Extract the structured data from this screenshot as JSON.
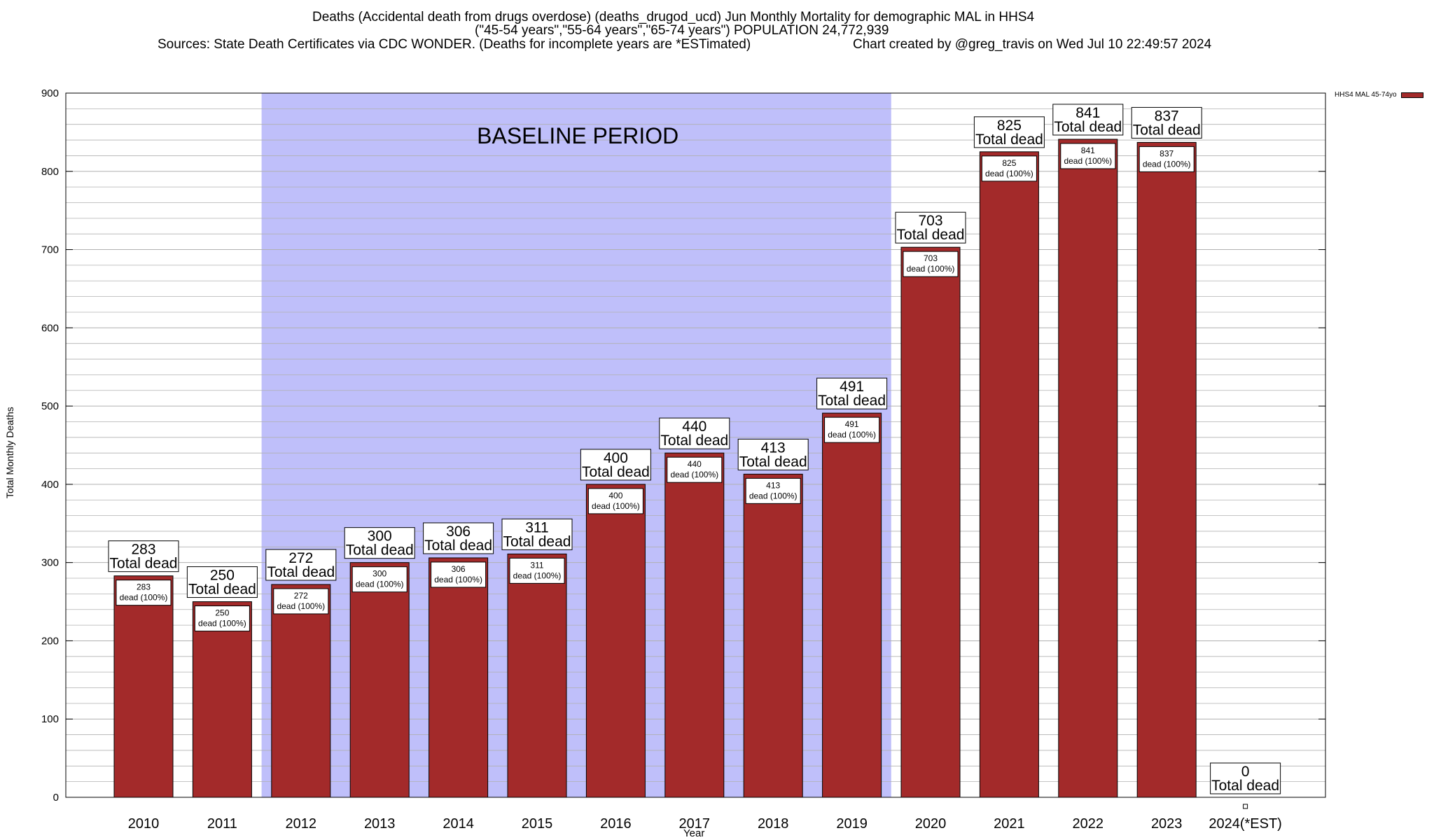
{
  "header": {
    "line1": "Deaths (Accidental death from drugs overdose) (deaths_drugod_ucd) Jun Monthly Mortality for demographic MAL in HHS4",
    "line2": "(\"45-54 years\",\"55-64 years\",\"65-74 years\") POPULATION 24,772,939",
    "line3": "Sources: State Death Certificates via CDC WONDER. (Deaths for incomplete years are *ESTimated)",
    "line4": "Chart created by @greg_travis on Wed Jul 10 22:49:57 2024"
  },
  "legend": {
    "label": "HHS4 MAL 45-74yo"
  },
  "colors": {
    "bar": "#a32a2a",
    "baseline": "#bfbffa",
    "grid": "#b0b0b0"
  },
  "chart_data": {
    "type": "bar",
    "xlabel": "Year",
    "ylabel": "Total Monthly Deaths",
    "ylim": [
      0,
      900
    ],
    "yticks": [
      0,
      100,
      200,
      300,
      400,
      500,
      600,
      700,
      800,
      900
    ],
    "categories": [
      "2010",
      "2011",
      "2012",
      "2013",
      "2014",
      "2015",
      "2016",
      "2017",
      "2018",
      "2019",
      "2020",
      "2021",
      "2022",
      "2023",
      "2024(*EST)"
    ],
    "series": [
      {
        "name": "HHS4 MAL 45-74yo",
        "values": [
          283,
          250,
          272,
          300,
          306,
          311,
          400,
          440,
          413,
          491,
          703,
          825,
          841,
          837,
          0
        ]
      }
    ],
    "baseline_period": {
      "label": "BASELINE PERIOD",
      "from": "2012",
      "to": "2019"
    },
    "top_label_suffix": "Total dead",
    "inner_label_suffix": "dead (100%)",
    "grid": true,
    "legend_position": "top-right"
  }
}
